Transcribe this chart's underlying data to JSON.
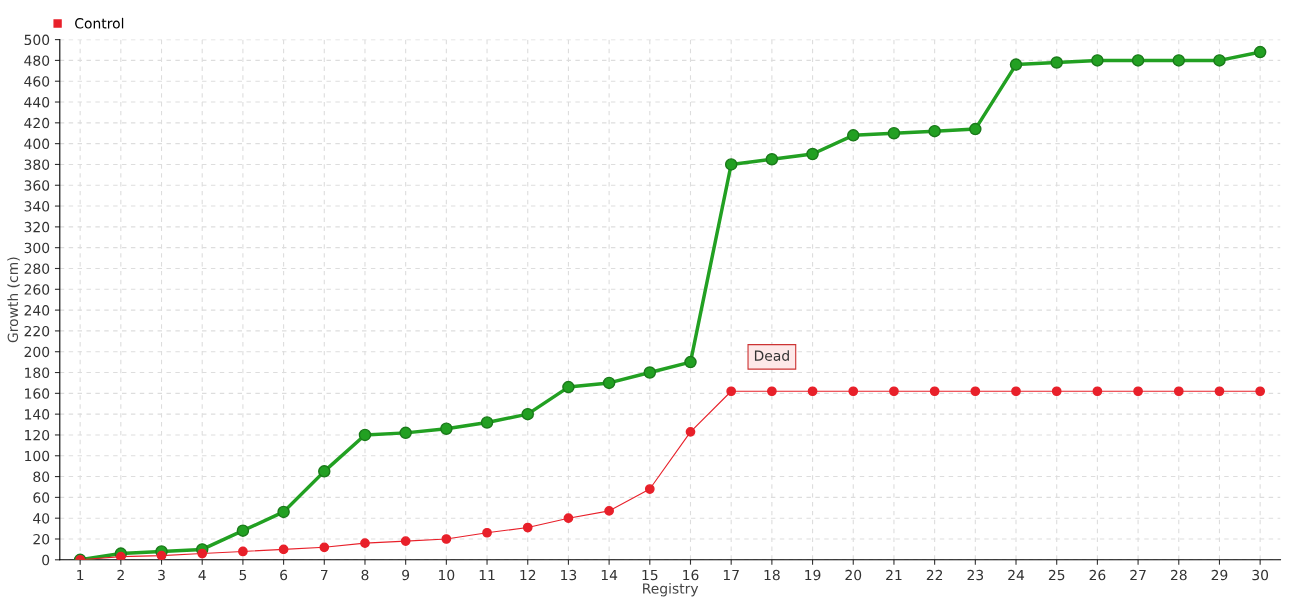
{
  "chart_data": {
    "type": "line",
    "xlabel": "Registry",
    "ylabel": "Growth (cm)",
    "x": [
      1,
      2,
      3,
      4,
      5,
      6,
      7,
      8,
      9,
      10,
      11,
      12,
      13,
      14,
      15,
      16,
      17,
      18,
      19,
      20,
      21,
      22,
      23,
      24,
      25,
      26,
      27,
      28,
      29,
      30
    ],
    "series": [
      {
        "color": "#22a022",
        "values": [
          0,
          6,
          8,
          10,
          28,
          46,
          85,
          120,
          122,
          126,
          132,
          140,
          166,
          170,
          180,
          190,
          380,
          385,
          390,
          408,
          410,
          412,
          414,
          476,
          478,
          480,
          480,
          480,
          480,
          488
        ]
      },
      {
        "name": "Control",
        "color": "#e8202a",
        "values": [
          0,
          3,
          4,
          6,
          8,
          10,
          12,
          16,
          18,
          20,
          26,
          31,
          40,
          47,
          68,
          123,
          162,
          162,
          162,
          162,
          162,
          162,
          162,
          162,
          162,
          162,
          162,
          162,
          162,
          162
        ]
      }
    ],
    "xlim": [
      0.5,
      30.5
    ],
    "xticks": [
      1,
      2,
      3,
      4,
      5,
      6,
      7,
      8,
      9,
      10,
      11,
      12,
      13,
      14,
      15,
      16,
      17,
      18,
      19,
      20,
      21,
      22,
      23,
      24,
      25,
      26,
      27,
      28,
      29,
      30
    ],
    "ylim": [
      0,
      500
    ],
    "yticks": [
      0,
      20,
      40,
      60,
      80,
      100,
      120,
      140,
      160,
      180,
      200,
      220,
      240,
      260,
      280,
      300,
      320,
      340,
      360,
      380,
      400,
      420,
      440,
      460,
      480,
      500
    ],
    "annotations": [
      {
        "text": "Dead",
        "x": 18,
        "y": 162
      }
    ],
    "grid": true,
    "legend": "top left",
    "marker": "circle",
    "line_style": "solid"
  }
}
